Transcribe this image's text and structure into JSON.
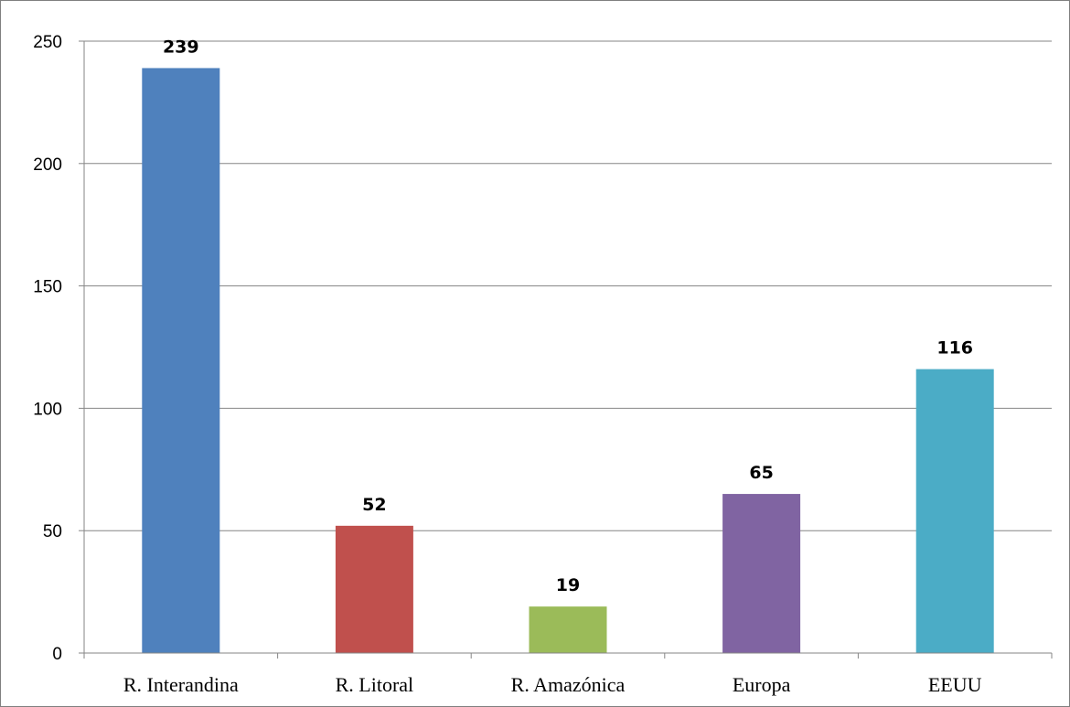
{
  "chart_data": {
    "type": "bar",
    "title": "",
    "xlabel": "",
    "ylabel": "",
    "categories": [
      "R. Interandina",
      "R. Litoral",
      "R. Amazónica",
      "Europa",
      "EEUU"
    ],
    "values": [
      239,
      52,
      19,
      65,
      116
    ],
    "data_labels": [
      "239",
      "52",
      "19",
      "65",
      "116"
    ],
    "colors": [
      "#4f81bd",
      "#c0504d",
      "#9bbb59",
      "#8064a2",
      "#4bacc6"
    ],
    "ylim": [
      0,
      250
    ],
    "yticks": [
      0,
      50,
      100,
      150,
      200,
      250
    ],
    "ytick_labels": [
      "0",
      "50",
      "100",
      "150",
      "200",
      "250"
    ],
    "grid": "horizontal",
    "legend": "none",
    "gridline_color": "#868686",
    "axis_color": "#868686"
  }
}
